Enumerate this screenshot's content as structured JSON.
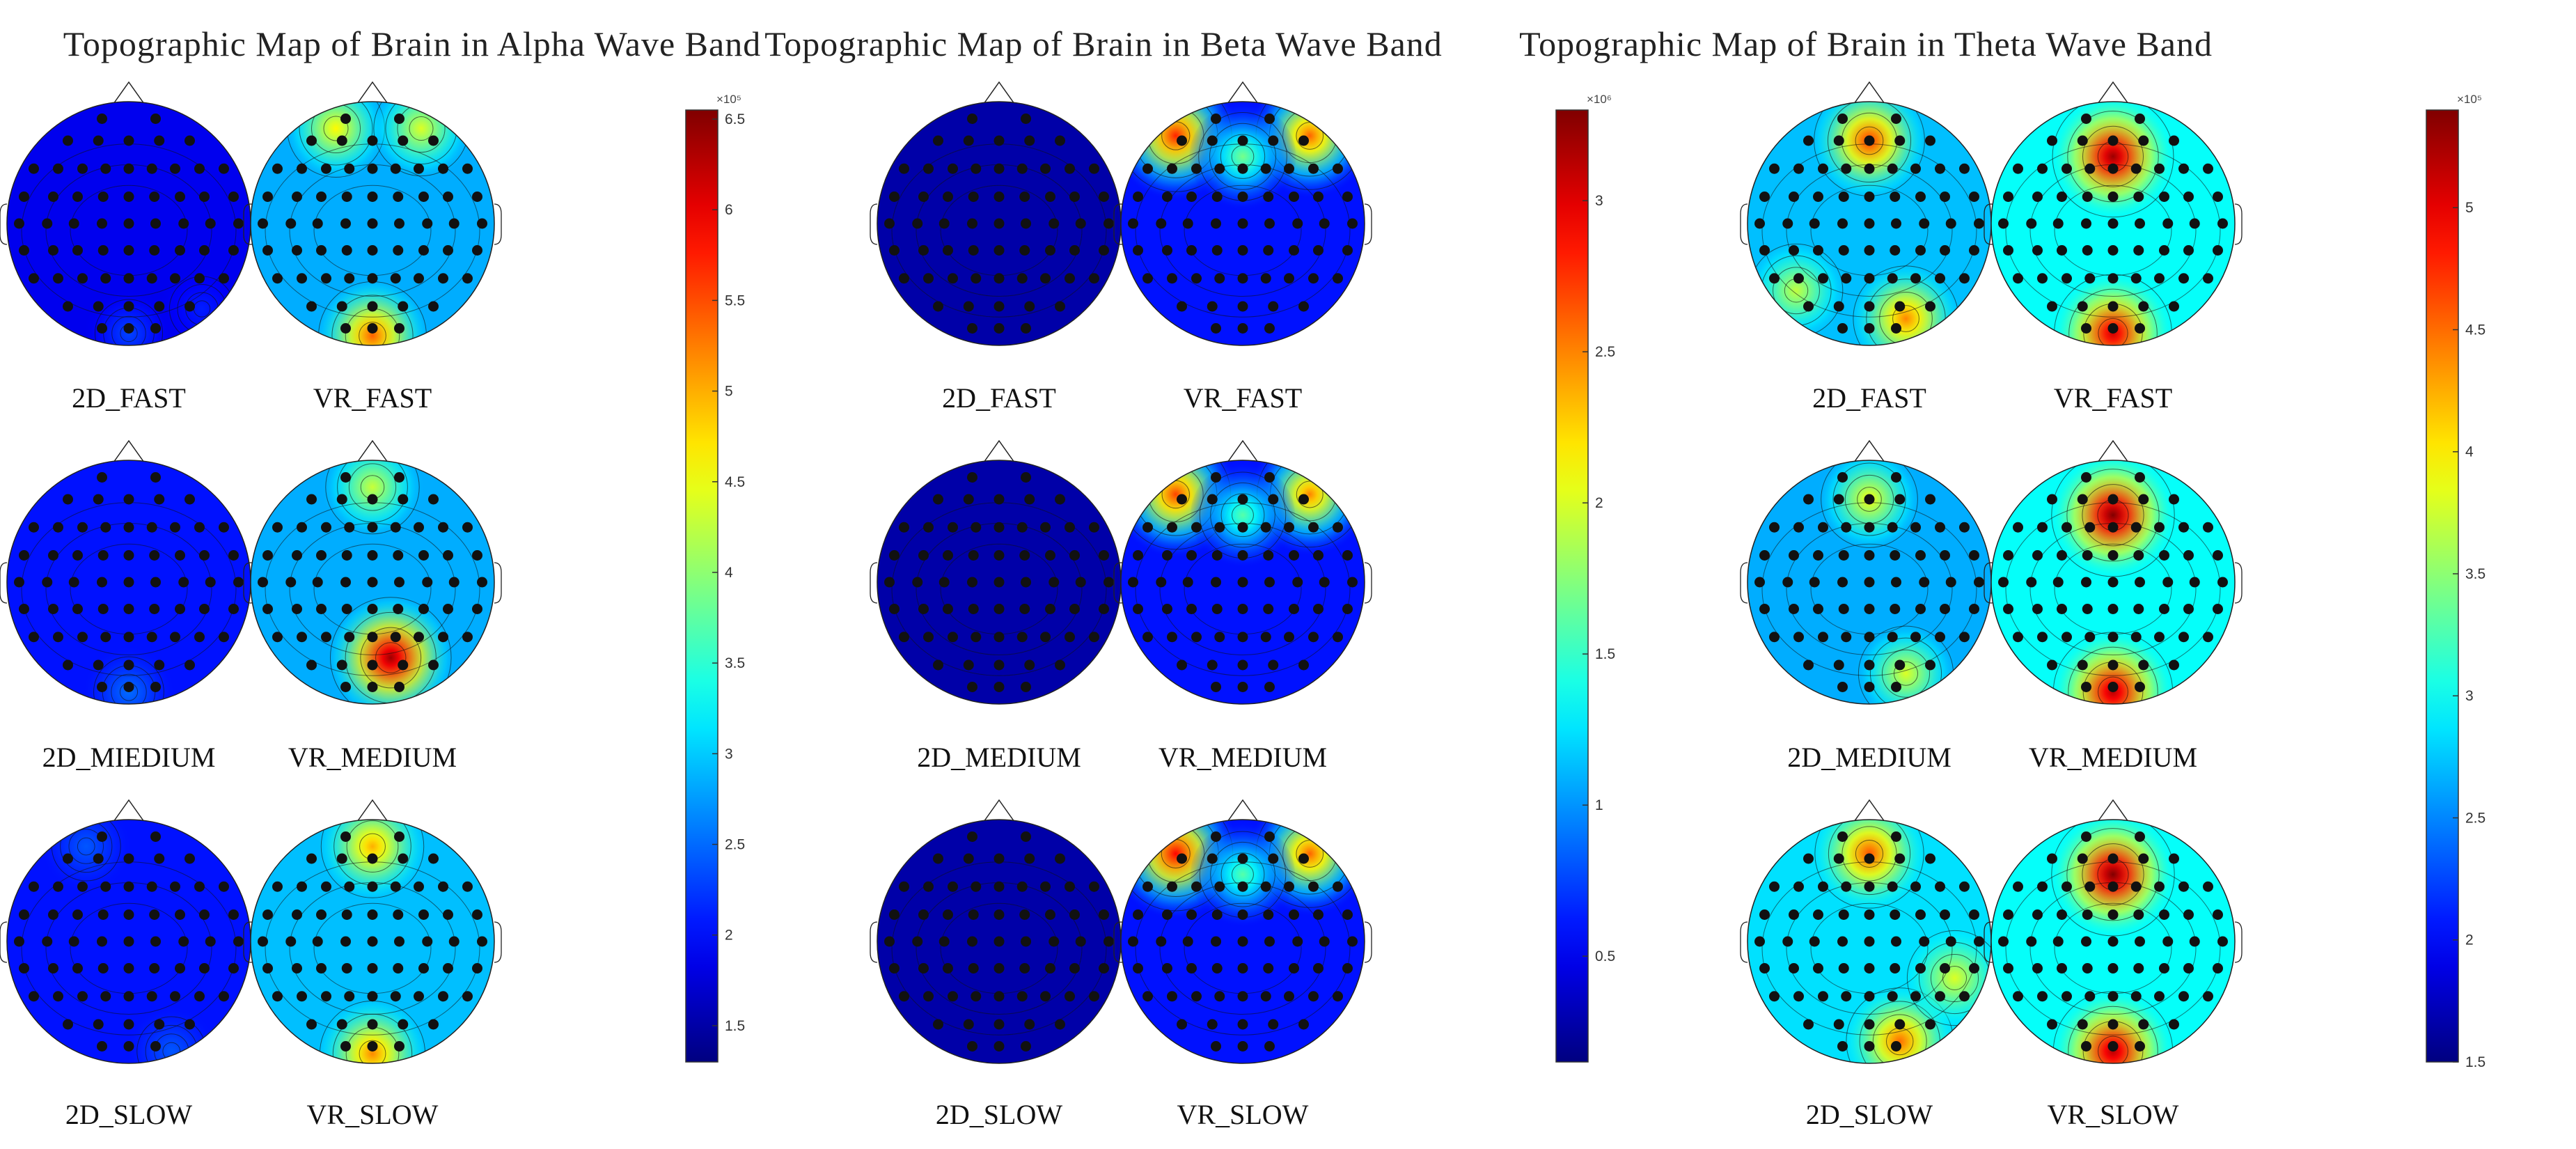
{
  "chart_data": [
    {
      "type": "heatmap",
      "title": "Topographic Map of Brain in Alpha Wave Band",
      "colorbar": {
        "min": 1.3,
        "max": 6.55,
        "exponent_label": "×10⁵",
        "ticks": [
          1.5,
          2,
          2.5,
          3,
          3.5,
          4,
          4.5,
          5,
          5.5,
          6,
          6.5
        ],
        "tick_labels": [
          "1.5",
          "2",
          "2.5",
          "3",
          "3.5",
          "4",
          "4.5",
          "5",
          "5.5",
          "6",
          "6.5"
        ]
      },
      "maps": [
        {
          "label": "2D_FAST",
          "level": 0.08,
          "hotspots": [
            {
              "x": 0.0,
              "y": -0.9,
              "v": 2.3
            },
            {
              "x": 0.6,
              "y": -0.7,
              "v": 2.1
            }
          ]
        },
        {
          "label": "VR_FAST",
          "level": 0.3,
          "hotspots": [
            {
              "x": -0.3,
              "y": 0.78,
              "v": 4.6
            },
            {
              "x": 0.4,
              "y": 0.78,
              "v": 4.4
            },
            {
              "x": 0.0,
              "y": -0.92,
              "v": 5.4
            }
          ]
        },
        {
          "label": "2D_MIEDIUM",
          "level": 0.12,
          "hotspots": [
            {
              "x": 0.0,
              "y": -0.9,
              "v": 2.5
            }
          ]
        },
        {
          "label": "VR_MEDIUM",
          "level": 0.3,
          "hotspots": [
            {
              "x": 0.15,
              "y": -0.62,
              "v": 6.4
            },
            {
              "x": 0.0,
              "y": 0.78,
              "v": 4.3
            }
          ]
        },
        {
          "label": "2D_SLOW",
          "level": 0.12,
          "hotspots": [
            {
              "x": -0.35,
              "y": 0.78,
              "v": 2.4
            },
            {
              "x": 0.35,
              "y": -0.9,
              "v": 2.4
            }
          ]
        },
        {
          "label": "VR_SLOW",
          "level": 0.32,
          "hotspots": [
            {
              "x": 0.0,
              "y": 0.78,
              "v": 5.0
            },
            {
              "x": 0.0,
              "y": -0.92,
              "v": 5.2
            }
          ]
        }
      ]
    },
    {
      "type": "heatmap",
      "title": "Topographic Map of Brain in Beta Wave Band",
      "colorbar": {
        "min": 0.15,
        "max": 3.3,
        "exponent_label": "×10⁶",
        "ticks": [
          0.5,
          1,
          1.5,
          2,
          2.5,
          3
        ],
        "tick_labels": [
          "0.5",
          "1",
          "1.5",
          "2",
          "2.5",
          "3"
        ]
      },
      "maps": [
        {
          "label": "2D_FAST",
          "level": 0.0,
          "hotspots": []
        },
        {
          "label": "VR_FAST",
          "level": 0.12,
          "hotspots": [
            {
              "x": -0.55,
              "y": 0.72,
              "v": 2.8
            },
            {
              "x": 0.55,
              "y": 0.72,
              "v": 2.6
            },
            {
              "x": 0.0,
              "y": 0.55,
              "v": 1.7
            }
          ]
        },
        {
          "label": "2D_MEDIUM",
          "level": 0.0,
          "hotspots": []
        },
        {
          "label": "VR_MEDIUM",
          "level": 0.12,
          "hotspots": [
            {
              "x": -0.55,
              "y": 0.72,
              "v": 2.7
            },
            {
              "x": 0.55,
              "y": 0.72,
              "v": 2.5
            },
            {
              "x": 0.0,
              "y": 0.55,
              "v": 1.6
            }
          ]
        },
        {
          "label": "2D_SLOW",
          "level": 0.0,
          "hotspots": []
        },
        {
          "label": "VR_SLOW",
          "level": 0.12,
          "hotspots": [
            {
              "x": -0.55,
              "y": 0.72,
              "v": 2.9
            },
            {
              "x": 0.55,
              "y": 0.72,
              "v": 2.6
            },
            {
              "x": 0.0,
              "y": 0.55,
              "v": 1.6
            }
          ]
        }
      ]
    },
    {
      "type": "heatmap",
      "title": "Topographic Map of Brain in Theta Wave Band",
      "colorbar": {
        "min": 1.5,
        "max": 5.4,
        "exponent_label": "×10⁵",
        "ticks": [
          1.5,
          2,
          2.5,
          3,
          3.5,
          4,
          4.5,
          5
        ],
        "tick_labels": [
          "1.5",
          "2",
          "2.5",
          "3",
          "3.5",
          "4",
          "4.5",
          "5"
        ]
      },
      "maps": [
        {
          "label": "2D_FAST",
          "level": 0.32,
          "hotspots": [
            {
              "x": 0.0,
              "y": 0.68,
              "v": 4.7
            },
            {
              "x": 0.3,
              "y": -0.78,
              "v": 4.4
            },
            {
              "x": -0.6,
              "y": -0.55,
              "v": 3.7
            }
          ]
        },
        {
          "label": "VR_FAST",
          "level": 0.4,
          "hotspots": [
            {
              "x": 0.0,
              "y": 0.55,
              "v": 5.3
            },
            {
              "x": 0.0,
              "y": -0.9,
              "v": 5.1
            }
          ]
        },
        {
          "label": "2D_MEDIUM",
          "level": 0.3,
          "hotspots": [
            {
              "x": 0.0,
              "y": 0.68,
              "v": 3.9
            },
            {
              "x": 0.3,
              "y": -0.75,
              "v": 3.8
            }
          ]
        },
        {
          "label": "VR_MEDIUM",
          "level": 0.4,
          "hotspots": [
            {
              "x": 0.0,
              "y": 0.55,
              "v": 5.4
            },
            {
              "x": 0.0,
              "y": -0.9,
              "v": 5.2
            }
          ]
        },
        {
          "label": "2D_SLOW",
          "level": 0.36,
          "hotspots": [
            {
              "x": 0.0,
              "y": 0.72,
              "v": 4.6
            },
            {
              "x": 0.25,
              "y": -0.82,
              "v": 4.5
            },
            {
              "x": 0.7,
              "y": -0.3,
              "v": 3.8
            }
          ]
        },
        {
          "label": "VR_SLOW",
          "level": 0.4,
          "hotspots": [
            {
              "x": 0.0,
              "y": 0.55,
              "v": 5.4
            },
            {
              "x": 0.0,
              "y": -0.9,
              "v": 5.2
            }
          ]
        }
      ]
    }
  ]
}
